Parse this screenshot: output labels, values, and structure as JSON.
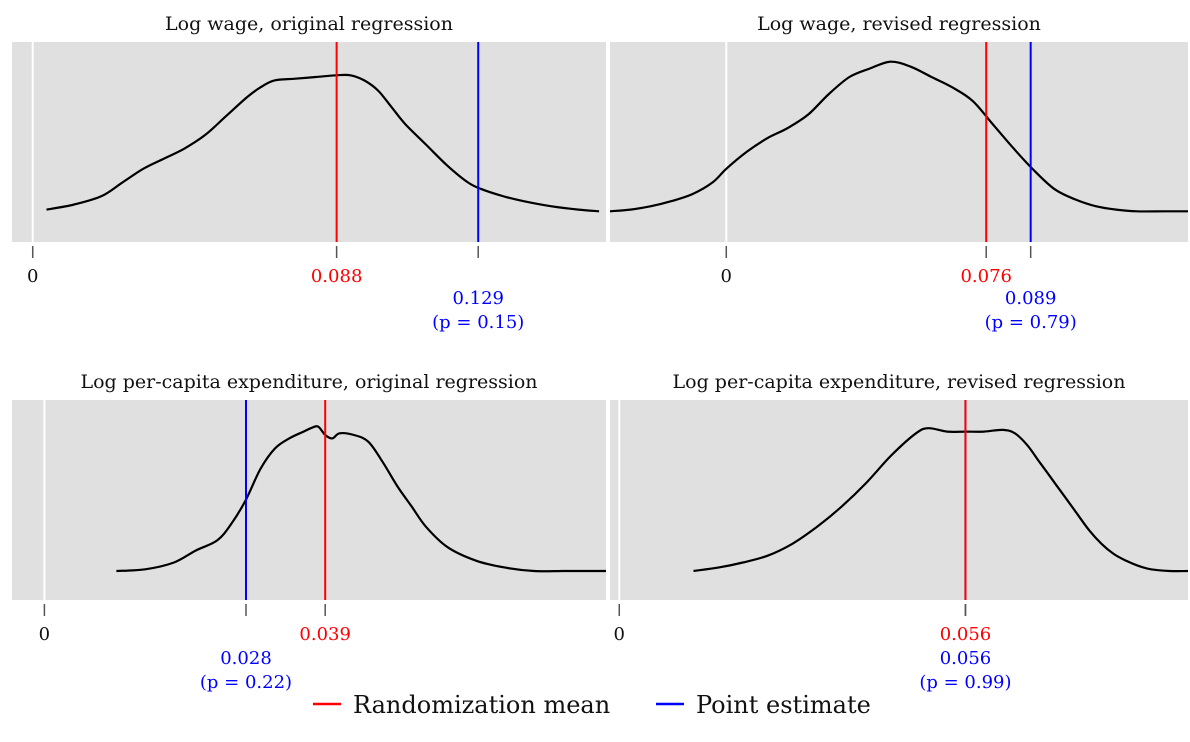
{
  "colors": {
    "panel_bg": "#e0e0e0",
    "randomization_mean": "#ff0000",
    "point_estimate": "#0000ff",
    "density": "#000000",
    "zero_line": "#ffffff"
  },
  "legend": {
    "position": "bottom-center",
    "items": [
      {
        "label": "Randomization mean",
        "color": "#ff0000"
      },
      {
        "label": "Point estimate",
        "color": "#0000ff"
      }
    ]
  },
  "chart_data": [
    {
      "type": "area",
      "title": "Log wage, original regression",
      "xlim": [
        -0.006,
        0.166
      ],
      "zero_label": "0",
      "randomization_mean": {
        "value": 0.088,
        "label": "0.088"
      },
      "point_estimate": {
        "value": 0.129,
        "label": "0.129",
        "p_label": "(p = 0.15)"
      },
      "density_x": [
        0.004,
        0.012,
        0.02,
        0.026,
        0.032,
        0.038,
        0.044,
        0.05,
        0.056,
        0.062,
        0.066,
        0.07,
        0.076,
        0.082,
        0.088,
        0.092,
        0.096,
        0.1,
        0.104,
        0.108,
        0.114,
        0.12,
        0.126,
        0.13,
        0.136,
        0.142,
        0.15,
        0.158,
        0.164
      ],
      "density_y": [
        0.12,
        0.15,
        0.2,
        0.28,
        0.36,
        0.42,
        0.48,
        0.56,
        0.67,
        0.78,
        0.84,
        0.88,
        0.89,
        0.9,
        0.91,
        0.91,
        0.88,
        0.82,
        0.72,
        0.62,
        0.5,
        0.38,
        0.28,
        0.24,
        0.2,
        0.17,
        0.14,
        0.12,
        0.11
      ]
    },
    {
      "type": "area",
      "title": "Log wage, revised regression",
      "xlim": [
        -0.034,
        0.135
      ],
      "zero_label": "0",
      "randomization_mean": {
        "value": 0.076,
        "label": "0.076"
      },
      "point_estimate": {
        "value": 0.089,
        "label": "0.089",
        "p_label": "(p = 0.79)"
      },
      "density_x": [
        -0.034,
        -0.028,
        -0.022,
        -0.016,
        -0.01,
        -0.004,
        0.0,
        0.006,
        0.012,
        0.018,
        0.024,
        0.03,
        0.036,
        0.042,
        0.048,
        0.054,
        0.06,
        0.066,
        0.072,
        0.078,
        0.084,
        0.09,
        0.096,
        0.102,
        0.108,
        0.114,
        0.12,
        0.128,
        0.135
      ],
      "density_y": [
        0.11,
        0.12,
        0.14,
        0.17,
        0.21,
        0.28,
        0.36,
        0.46,
        0.54,
        0.6,
        0.68,
        0.8,
        0.9,
        0.95,
        0.99,
        0.96,
        0.9,
        0.84,
        0.76,
        0.62,
        0.48,
        0.35,
        0.24,
        0.18,
        0.14,
        0.12,
        0.11,
        0.11,
        0.11
      ]
    },
    {
      "type": "area",
      "title": "Log per-capita expenditure, original regression",
      "xlim": [
        -0.0045,
        0.078
      ],
      "zero_label": "0",
      "randomization_mean": {
        "value": 0.039,
        "label": "0.039"
      },
      "point_estimate": {
        "value": 0.028,
        "label": "0.028",
        "p_label": "(p = 0.22)"
      },
      "density_x": [
        0.01,
        0.014,
        0.018,
        0.021,
        0.024,
        0.026,
        0.028,
        0.03,
        0.032,
        0.034,
        0.036,
        0.037,
        0.038,
        0.039,
        0.04,
        0.041,
        0.043,
        0.045,
        0.047,
        0.049,
        0.051,
        0.053,
        0.056,
        0.06,
        0.064,
        0.068,
        0.072,
        0.075,
        0.078
      ],
      "density_y": [
        0.1,
        0.11,
        0.15,
        0.22,
        0.28,
        0.38,
        0.52,
        0.7,
        0.82,
        0.88,
        0.92,
        0.94,
        0.95,
        0.9,
        0.88,
        0.91,
        0.9,
        0.86,
        0.74,
        0.6,
        0.48,
        0.36,
        0.24,
        0.16,
        0.12,
        0.1,
        0.1,
        0.1,
        0.1
      ]
    },
    {
      "type": "area",
      "title": "Log per-capita expenditure, revised regression",
      "xlim": [
        -0.0015,
        0.092
      ],
      "zero_label": "0",
      "randomization_mean": {
        "value": 0.056,
        "label": "0.056"
      },
      "point_estimate": {
        "value": 0.056,
        "label": "0.056",
        "p_label": "(p = 0.99)"
      },
      "density_x": [
        0.012,
        0.016,
        0.02,
        0.024,
        0.028,
        0.032,
        0.036,
        0.04,
        0.044,
        0.048,
        0.05,
        0.053,
        0.056,
        0.059,
        0.062,
        0.064,
        0.066,
        0.068,
        0.07,
        0.072,
        0.074,
        0.076,
        0.078,
        0.08,
        0.082,
        0.084,
        0.086,
        0.089,
        0.092
      ],
      "density_y": [
        0.1,
        0.12,
        0.15,
        0.19,
        0.26,
        0.36,
        0.48,
        0.62,
        0.78,
        0.91,
        0.94,
        0.92,
        0.92,
        0.92,
        0.93,
        0.91,
        0.84,
        0.74,
        0.64,
        0.54,
        0.44,
        0.34,
        0.26,
        0.2,
        0.16,
        0.13,
        0.11,
        0.1,
        0.1
      ]
    }
  ]
}
